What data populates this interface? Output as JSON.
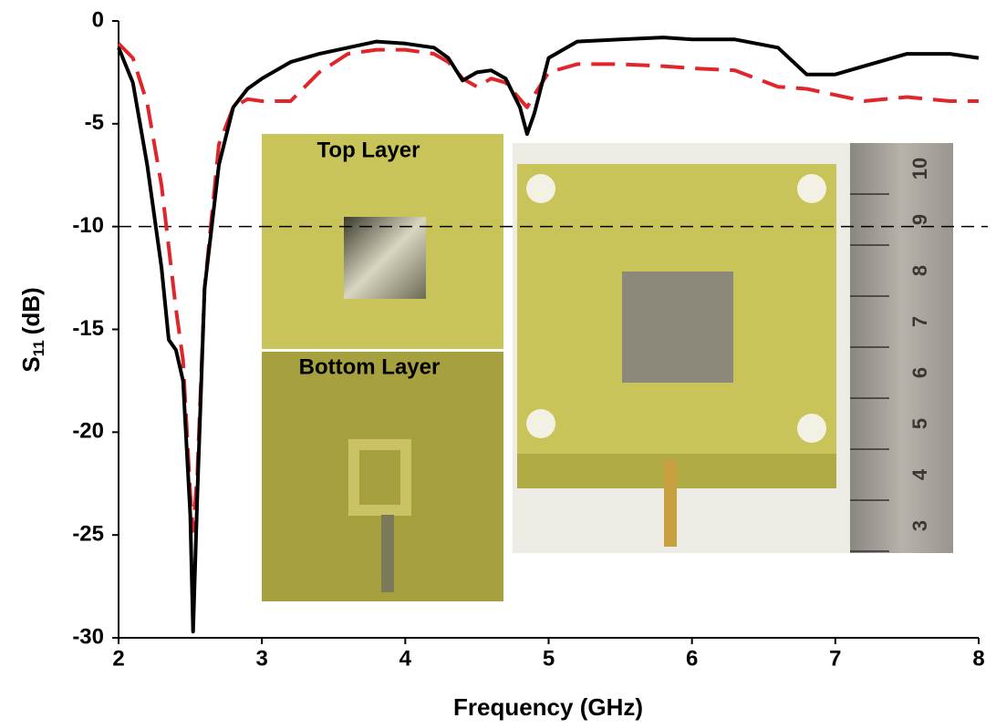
{
  "chart_data": {
    "type": "line",
    "x_label": "Frequency (GHz)",
    "y_label": {
      "symbol": "S",
      "subscript": "11",
      "unit": "(dB)"
    },
    "x": [
      2.0,
      2.1,
      2.2,
      2.3,
      2.35,
      2.4,
      2.45,
      2.5,
      2.52,
      2.55,
      2.6,
      2.7,
      2.8,
      2.9,
      3.0,
      3.2,
      3.4,
      3.6,
      3.8,
      4.0,
      4.2,
      4.3,
      4.4,
      4.5,
      4.6,
      4.7,
      4.8,
      4.85,
      4.9,
      5.0,
      5.2,
      5.5,
      5.8,
      6.0,
      6.3,
      6.6,
      6.8,
      7.0,
      7.2,
      7.5,
      7.8,
      8.0
    ],
    "series": [
      {
        "color": "#000000",
        "dash": false,
        "values": [
          -1.3,
          -3,
          -7,
          -12,
          -15.5,
          -16,
          -17.5,
          -24,
          -29.7,
          -23,
          -13,
          -7,
          -4.2,
          -3.3,
          -2.8,
          -2.0,
          -1.6,
          -1.3,
          -1.0,
          -1.1,
          -1.3,
          -1.8,
          -2.9,
          -2.5,
          -2.4,
          -2.8,
          -4.2,
          -5.5,
          -4.5,
          -1.8,
          -1.0,
          -0.9,
          -0.8,
          -0.9,
          -0.9,
          -1.3,
          -2.6,
          -2.6,
          -2.2,
          -1.6,
          -1.6,
          -1.8
        ]
      },
      {
        "color": "#e0252b",
        "dash": true,
        "values": [
          -1.1,
          -1.8,
          -4,
          -8,
          -11,
          -14,
          -16.5,
          -23,
          -24.8,
          -22,
          -13,
          -6,
          -4.2,
          -3.8,
          -3.9,
          -3.9,
          -2.5,
          -1.6,
          -1.4,
          -1.4,
          -1.6,
          -2.0,
          -2.8,
          -3.2,
          -2.8,
          -3.0,
          -3.8,
          -4.2,
          -3.6,
          -2.5,
          -2.1,
          -2.1,
          -2.2,
          -2.3,
          -2.4,
          -3.2,
          -3.3,
          -3.6,
          -3.9,
          -3.7,
          -3.9,
          -3.9
        ]
      }
    ],
    "reference_line": -10,
    "xlim": [
      2,
      8
    ],
    "xticks": [
      2,
      3,
      4,
      5,
      6,
      7,
      8
    ],
    "ylim": [
      -30,
      0
    ],
    "yticks": [
      0,
      -5,
      -10,
      -15,
      -20,
      -25,
      -30
    ],
    "insets": {
      "top": "Top Layer",
      "bottom": "Bottom Layer",
      "ruler_labels": [
        "10",
        "9",
        "8",
        "7",
        "6",
        "5",
        "4",
        "3"
      ]
    }
  }
}
